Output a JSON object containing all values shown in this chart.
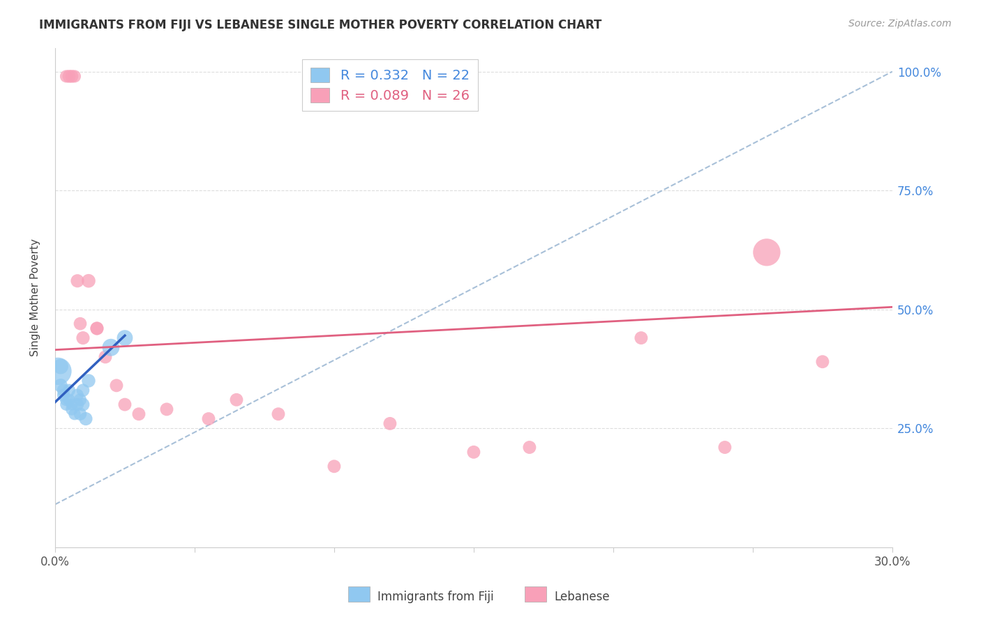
{
  "title": "IMMIGRANTS FROM FIJI VS LEBANESE SINGLE MOTHER POVERTY CORRELATION CHART",
  "source": "Source: ZipAtlas.com",
  "ylabel": "Single Mother Poverty",
  "xlim": [
    0,
    0.3
  ],
  "ylim": [
    0.0,
    1.05
  ],
  "ytick_labels": [
    "25.0%",
    "50.0%",
    "75.0%",
    "100.0%"
  ],
  "ytick_values": [
    0.25,
    0.5,
    0.75,
    1.0
  ],
  "legend_label1": "Immigrants from Fiji",
  "legend_label2": "Lebanese",
  "R1": 0.332,
  "N1": 22,
  "R2": 0.089,
  "N2": 26,
  "color_blue": "#90C8F0",
  "color_blue_line": "#3060C0",
  "color_pink": "#F8A0B8",
  "color_pink_line": "#E06080",
  "color_dashed": "#A8C0D8",
  "fiji_x": [
    0.001,
    0.002,
    0.002,
    0.003,
    0.003,
    0.004,
    0.004,
    0.005,
    0.005,
    0.006,
    0.006,
    0.007,
    0.008,
    0.008,
    0.009,
    0.009,
    0.01,
    0.01,
    0.011,
    0.012,
    0.02,
    0.025
  ],
  "fiji_y": [
    0.37,
    0.38,
    0.34,
    0.33,
    0.32,
    0.31,
    0.3,
    0.31,
    0.33,
    0.29,
    0.3,
    0.28,
    0.32,
    0.3,
    0.31,
    0.28,
    0.33,
    0.3,
    0.27,
    0.35,
    0.42,
    0.44
  ],
  "fiji_sizes": [
    800,
    250,
    200,
    180,
    170,
    170,
    160,
    160,
    170,
    160,
    150,
    155,
    165,
    175,
    170,
    175,
    180,
    185,
    190,
    195,
    320,
    270
  ],
  "lebanese_x": [
    0.004,
    0.005,
    0.006,
    0.007,
    0.008,
    0.009,
    0.01,
    0.012,
    0.015,
    0.015,
    0.018,
    0.022,
    0.025,
    0.03,
    0.04,
    0.055,
    0.065,
    0.08,
    0.1,
    0.12,
    0.15,
    0.17,
    0.21,
    0.24,
    0.255,
    0.275
  ],
  "lebanese_y": [
    0.99,
    0.99,
    0.99,
    0.99,
    0.56,
    0.47,
    0.44,
    0.56,
    0.46,
    0.46,
    0.4,
    0.34,
    0.3,
    0.28,
    0.29,
    0.27,
    0.31,
    0.28,
    0.17,
    0.26,
    0.2,
    0.21,
    0.44,
    0.21,
    0.62,
    0.39
  ],
  "lebanese_sizes": [
    170,
    180,
    180,
    170,
    190,
    180,
    190,
    200,
    190,
    185,
    185,
    185,
    185,
    185,
    185,
    185,
    185,
    185,
    185,
    185,
    185,
    185,
    185,
    185,
    800,
    185
  ],
  "fiji_trend_x": [
    0.0,
    0.025
  ],
  "fiji_trend_y": [
    0.305,
    0.445
  ],
  "lebanese_trend_x": [
    0.0,
    0.3
  ],
  "lebanese_trend_y": [
    0.415,
    0.505
  ],
  "dashed_line_x": [
    0.0,
    0.3
  ],
  "dashed_line_y": [
    0.09,
    1.0
  ]
}
